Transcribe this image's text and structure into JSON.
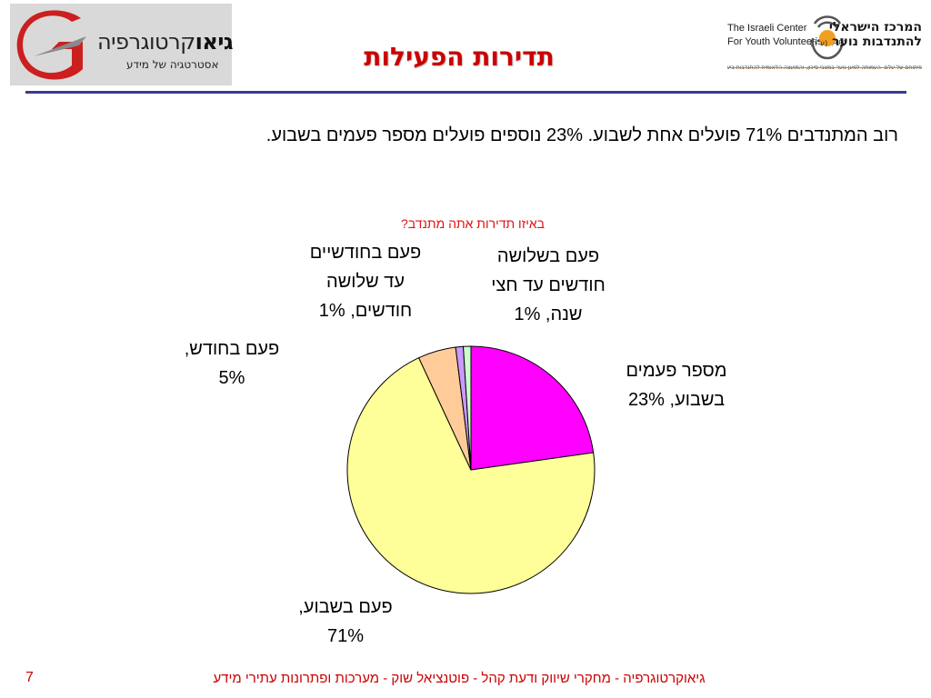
{
  "header": {
    "left_logo": {
      "brand_bold": "גיאו",
      "brand_regular": "קרטוגרפיה",
      "tagline": "אסטרטגיה של מידע",
      "accent_color": "#cc1f1f"
    },
    "title": "תדירות הפעילות",
    "right_logo": {
      "english_line1": "The Israeli Center",
      "english_line2": "For Youth Volunteerism",
      "english_suffix": "(A.R)",
      "hebrew_line1": "המרכז הישראלי",
      "hebrew_line2": "להתנדבות נוער",
      "hebrew_suffix": "(ע\"ר)",
      "subline": "פיתוחם של עלם- העמותה למען נוער במצבי סיכון, והמועצה הלאומית להתנדבות בישראל"
    }
  },
  "summary": "רוב המתנדבים 71% פועלים אחת לשבוע.  23% נוספים פועלים מספר פעמים בשבוע.",
  "chart_data": {
    "type": "pie",
    "title": "באיזו תדירות אתה מתנדב?",
    "slices": [
      {
        "label": "מספר פעמים בשבוע, 23%",
        "value": 23,
        "color": "#ff00ff"
      },
      {
        "label": "פעם בשבוע, 71%",
        "value": 71,
        "color": "#ffff99"
      },
      {
        "label": "פעם בחודש, 5%",
        "value": 5,
        "color": "#ffcc99"
      },
      {
        "label": "פעם בחודשיים עד שלושה חודשים, 1%",
        "value": 1,
        "color": "#cc99ff"
      },
      {
        "label": "פעם בשלושה חודשים עד חצי שנה, 1%",
        "value": 1,
        "color": "#ccffcc"
      }
    ],
    "label_lines": [
      [
        "מספר פעמים",
        "בשבוע, 23%"
      ],
      [
        "פעם בשבוע,",
        "71%"
      ],
      [
        "פעם בחודש,",
        "5%"
      ],
      [
        "פעם בחודשיים",
        "עד שלושה",
        "חודשים, 1%"
      ],
      [
        "פעם בשלושה",
        "חודשים עד חצי",
        "שנה, 1%"
      ]
    ]
  },
  "footer": {
    "text": "גיאוקרטוגרפיה - מחקרי שיווק ודעת קהל - פוטנציאל שוק - מערכות ופתרונות עתירי מידע",
    "page_number": "7"
  }
}
